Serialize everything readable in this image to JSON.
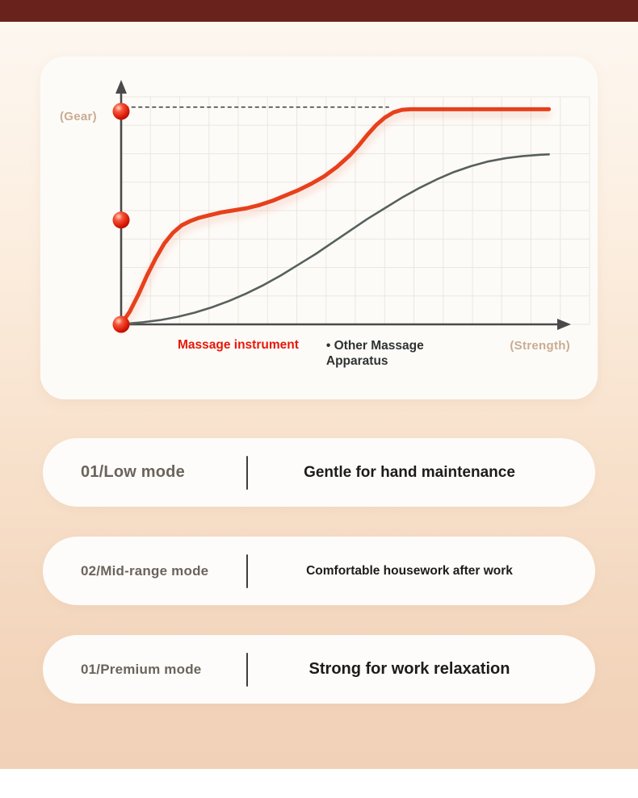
{
  "theme": {
    "top_bar": "#6a231c",
    "page_gradient_top": "#fdf7f0",
    "page_gradient_bottom": "#f1d1b7",
    "card_bg": "#fdfbf8",
    "accent_red": "#e6190a",
    "curve_gray": "#57605d",
    "tan_label": "#c9ac92"
  },
  "chart": {
    "y_axis_label": "(Gear)",
    "x_axis_label": "(Strength)",
    "legend_primary": "Massage instrument",
    "legend_secondary": "•  Other Massage Apparatus"
  },
  "chart_data": {
    "type": "line",
    "title": "",
    "xlabel": "(Strength)",
    "ylabel": "(Gear)",
    "x_range": [
      0,
      100
    ],
    "y_range": [
      0,
      110
    ],
    "grid": true,
    "legend_position": "bottom",
    "series": [
      {
        "name": "Massage instrument",
        "color": "#e73f1c",
        "width": 5,
        "glow": true,
        "x": [
          0,
          2,
          4,
          6,
          8,
          10,
          12,
          14,
          16,
          18,
          20,
          23,
          26,
          29,
          32,
          35,
          38,
          41,
          44,
          47,
          50,
          53,
          55,
          57,
          59,
          61,
          63,
          65,
          67,
          70,
          75,
          80,
          85,
          90,
          95,
          99
        ],
        "y": [
          0,
          6,
          14,
          23,
          31,
          38,
          43,
          46.5,
          48.5,
          50,
          51,
          52.5,
          53.5,
          54.5,
          56,
          58,
          60.5,
          63,
          66,
          69.5,
          74,
          79.5,
          84,
          89,
          93.5,
          97,
          99.5,
          100.7,
          101,
          101,
          101,
          101,
          101,
          101,
          101,
          101
        ]
      },
      {
        "name": "Other Massage Apparatus",
        "color": "#57605d",
        "width": 2.6,
        "glow": false,
        "x": [
          1,
          5,
          9,
          13,
          17,
          21,
          25,
          29,
          33,
          37,
          41,
          45,
          49,
          53,
          57,
          61,
          65,
          69,
          73,
          77,
          81,
          85,
          89,
          93,
          97,
          99
        ],
        "y": [
          0.3,
          1,
          2,
          3.5,
          5.5,
          8,
          11,
          14.5,
          18.5,
          23,
          28,
          33,
          38.5,
          44,
          49.5,
          54.5,
          59.5,
          64,
          68,
          71.5,
          74.3,
          76.5,
          78,
          79,
          79.6,
          79.8
        ]
      }
    ],
    "markers": {
      "name": "gear-level-dots",
      "color": "#e02814",
      "points": [
        [
          0,
          0
        ],
        [
          0,
          49
        ],
        [
          0,
          100
        ]
      ]
    },
    "annotations": [
      {
        "type": "dashed-line",
        "y": 102,
        "x_start": 0.8,
        "x_end": 62
      }
    ]
  },
  "modes": [
    {
      "label": "01/Low mode",
      "description": "Gentle for hand maintenance"
    },
    {
      "label": "02/Mid-range mode",
      "description": "Comfortable housework after work"
    },
    {
      "label": "01/Premium mode",
      "description": "Strong for work relaxation"
    }
  ]
}
